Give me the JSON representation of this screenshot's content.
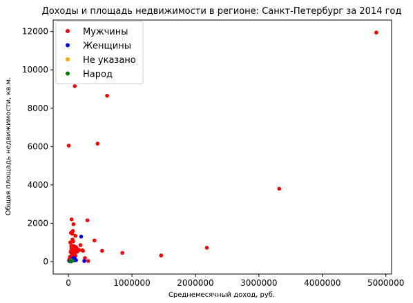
{
  "chart_data": {
    "type": "scatter",
    "title": "Доходы и площадь недвижимости в регионе: Санкт-Петербург за 2014 год",
    "xlabel": "Среднемесячный доход, руб.",
    "ylabel": "Общая площадь недвижимости, кв.м.",
    "xlim": [
      -240000,
      5090000
    ],
    "ylim": [
      -650,
      12600
    ],
    "xticks": [
      0,
      1000000,
      2000000,
      3000000,
      4000000,
      5000000
    ],
    "xtick_labels": [
      "0",
      "1000000",
      "2000000",
      "3000000",
      "4000000",
      "5000000"
    ],
    "yticks": [
      0,
      2000,
      4000,
      6000,
      8000,
      10000,
      12000
    ],
    "ytick_labels": [
      "0",
      "2000",
      "4000",
      "6000",
      "8000",
      "10000",
      "12000"
    ],
    "grid": false,
    "legend_position": "top-left",
    "series": [
      {
        "name": "Мужчины",
        "color": "#ff0000",
        "points": [
          [
            4850000,
            11950
          ],
          [
            3320000,
            3800
          ],
          [
            2180000,
            720
          ],
          [
            1460000,
            320
          ],
          [
            850000,
            450
          ],
          [
            610000,
            8650
          ],
          [
            460000,
            6150
          ],
          [
            530000,
            560
          ],
          [
            410000,
            1100
          ],
          [
            300000,
            2150
          ],
          [
            310000,
            30
          ],
          [
            260000,
            180
          ],
          [
            230000,
            560
          ],
          [
            220000,
            590
          ],
          [
            190000,
            860
          ],
          [
            170000,
            600
          ],
          [
            140000,
            650
          ],
          [
            110000,
            1340
          ],
          [
            100000,
            9150
          ],
          [
            70000,
            1600
          ],
          [
            60000,
            1450
          ],
          [
            50000,
            2200
          ],
          [
            40000,
            1500
          ],
          [
            80000,
            1950
          ],
          [
            65000,
            1150
          ],
          [
            75000,
            1050
          ],
          [
            30000,
            1000
          ],
          [
            5000,
            6050
          ],
          [
            90000,
            800
          ],
          [
            60000,
            820
          ],
          [
            45000,
            820
          ],
          [
            50000,
            720
          ],
          [
            85000,
            600
          ],
          [
            120000,
            750
          ],
          [
            130000,
            620
          ],
          [
            140000,
            520
          ],
          [
            100000,
            450
          ],
          [
            80000,
            400
          ],
          [
            70000,
            350
          ],
          [
            50000,
            300
          ],
          [
            60000,
            200
          ],
          [
            40000,
            150
          ],
          [
            90000,
            250
          ],
          [
            110000,
            300
          ],
          [
            35000,
            500
          ],
          [
            55000,
            400
          ],
          [
            20000,
            100
          ],
          [
            10000,
            50
          ],
          [
            25000,
            250
          ],
          [
            45000,
            600
          ],
          [
            75000,
            150
          ],
          [
            95000,
            100
          ],
          [
            30000,
            80
          ],
          [
            15000,
            120
          ],
          [
            65000,
            500
          ]
        ]
      },
      {
        "name": "Женщины",
        "color": "#0000ff",
        "points": [
          [
            200000,
            1300
          ],
          [
            250000,
            30
          ],
          [
            80000,
            180
          ],
          [
            100000,
            150
          ],
          [
            60000,
            120
          ],
          [
            40000,
            50
          ],
          [
            70000,
            80
          ],
          [
            90000,
            60
          ],
          [
            50000,
            100
          ],
          [
            30000,
            40
          ],
          [
            110000,
            90
          ],
          [
            120000,
            70
          ],
          [
            20000,
            20
          ]
        ]
      },
      {
        "name": "Не указано",
        "color": "#ffa500",
        "points": [
          [
            40000,
            60
          ],
          [
            60000,
            40
          ]
        ]
      },
      {
        "name": "Народ",
        "color": "#008000",
        "points": [
          [
            30000,
            30
          ],
          [
            50000,
            20
          ],
          [
            60000,
            50
          ],
          [
            40000,
            10
          ]
        ]
      }
    ]
  }
}
